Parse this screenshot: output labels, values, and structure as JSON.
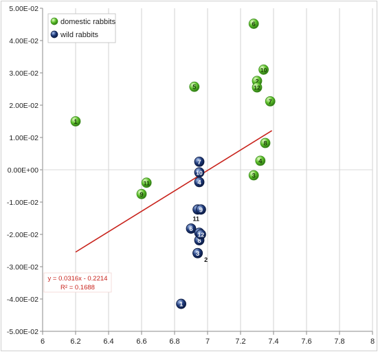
{
  "chart_data": {
    "type": "scatter",
    "xlim": [
      6,
      8
    ],
    "ylim": [
      -0.05,
      0.05
    ],
    "x_ticks": [
      "6",
      "6.2",
      "6.4",
      "6.6",
      "6.8",
      "7",
      "7.2",
      "7.4",
      "7.6",
      "7.8",
      "8"
    ],
    "y_ticks": [
      "5.00E-02",
      "4.00E-02",
      "3.00E-02",
      "2.00E-02",
      "1.00E-02",
      "0.00E+00",
      "-1.00E-02",
      "-2.00E-02",
      "-3.00E-02",
      "-4.00E-02",
      "-5.00E-02"
    ],
    "grid": "vertical",
    "legend_position": "top-left",
    "series": [
      {
        "name": "domestic rabbits",
        "color": "#5cbf2a",
        "points": [
          {
            "label": "1",
            "x": 6.2,
            "y": 0.015
          },
          {
            "label": "2",
            "x": 7.3,
            "y": 0.0275
          },
          {
            "label": "3",
            "x": 7.28,
            "y": -0.0017
          },
          {
            "label": "4",
            "x": 7.32,
            "y": 0.0028
          },
          {
            "label": "5",
            "x": 6.92,
            "y": 0.0257
          },
          {
            "label": "6",
            "x": 7.28,
            "y": 0.0452
          },
          {
            "label": "7",
            "x": 7.38,
            "y": 0.0212
          },
          {
            "label": "8",
            "x": 7.35,
            "y": 0.0083
          },
          {
            "label": "9",
            "x": 6.6,
            "y": -0.0075
          },
          {
            "label": "10",
            "x": 7.34,
            "y": 0.031
          },
          {
            "label": "11",
            "x": 6.63,
            "y": -0.004
          },
          {
            "label": "12",
            "x": 7.3,
            "y": 0.0255
          }
        ]
      },
      {
        "name": "wild rabbits",
        "color": "#1f3a7a",
        "points": [
          {
            "label": "1",
            "x": 6.84,
            "y": -0.0415
          },
          {
            "label": "2",
            "x": 6.94,
            "y": -0.0258
          },
          {
            "label": "3",
            "x": 6.94,
            "y": -0.0258
          },
          {
            "label": "4",
            "x": 6.95,
            "y": -0.0038
          },
          {
            "label": "5",
            "x": 6.94,
            "y": -0.0123
          },
          {
            "label": "6",
            "x": 6.9,
            "y": -0.0182
          },
          {
            "label": "7",
            "x": 6.95,
            "y": 0.0025
          },
          {
            "label": "8",
            "x": 6.95,
            "y": -0.0218
          },
          {
            "label": "9",
            "x": 6.96,
            "y": -0.0123
          },
          {
            "label": "10",
            "x": 6.95,
            "y": -0.0008
          },
          {
            "label": "11",
            "x": 6.95,
            "y": -0.0195
          },
          {
            "label": "12",
            "x": 6.96,
            "y": -0.02
          }
        ]
      }
    ],
    "trendline": {
      "slope": 0.0316,
      "intercept": -0.2214,
      "x_range": [
        6.2,
        7.39
      ],
      "color": "#c8221b",
      "equation": "y = 0.0316x - 0.2214",
      "r2": "R² = 0.1688"
    },
    "annotations": [
      {
        "text": "11",
        "x": 6.93,
        "y": -0.0158
      },
      {
        "text": "2",
        "x": 6.99,
        "y": -0.0285
      }
    ]
  }
}
